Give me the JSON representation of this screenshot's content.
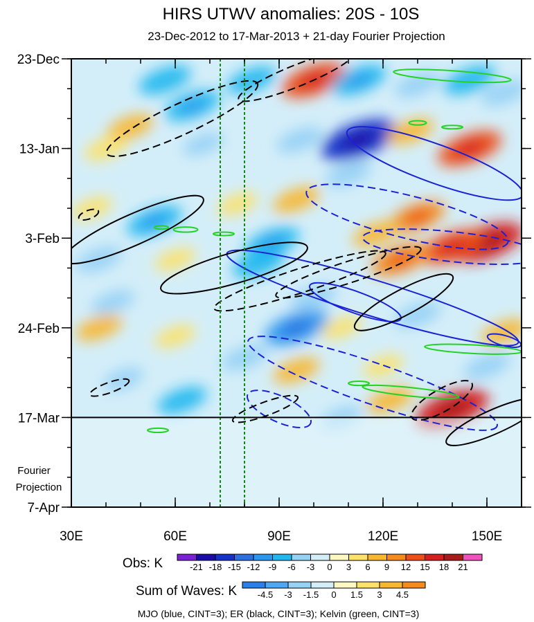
{
  "chart_data": {
    "type": "heatmap",
    "title": "HIRS UTWV anomalies: 20S - 10S",
    "subtitle": "23-Dec-2012 to 17-Mar-2013 + 21-day Fourier Projection",
    "x_axis": {
      "range": [
        30,
        160
      ],
      "unit": "degrees E",
      "ticks": [
        {
          "value": 30,
          "label": "30E"
        },
        {
          "value": 60,
          "label": "60E"
        },
        {
          "value": 90,
          "label": "90E"
        },
        {
          "value": 120,
          "label": "120E"
        },
        {
          "value": 150,
          "label": "150E"
        }
      ],
      "minor_step": 10
    },
    "y_axis": {
      "range_days": [
        0,
        105
      ],
      "direction": "time increases downward",
      "ticks": [
        {
          "day": 0,
          "label": "23-Dec"
        },
        {
          "day": 21,
          "label": "13-Jan"
        },
        {
          "day": 42,
          "label": "3-Feb"
        },
        {
          "day": 63,
          "label": "24-Feb"
        },
        {
          "day": 84,
          "label": "17-Mar"
        },
        {
          "day": 105,
          "label": "7-Apr"
        }
      ],
      "minor_step_days": 7
    },
    "projection_label": [
      "Fourier",
      "Projection"
    ],
    "projection_start_day": 84,
    "reference_lines_lon": [
      73,
      80
    ],
    "obs_colorbar": {
      "label": "Obs: K",
      "levels": [
        -21,
        -18,
        -15,
        -12,
        -9,
        -6,
        -3,
        0,
        3,
        6,
        9,
        12,
        15,
        18,
        21
      ],
      "colors": [
        "#7b22d6",
        "#1a0ca8",
        "#1632c8",
        "#2f6fe0",
        "#2b97ee",
        "#22b8ef",
        "#97d2f5",
        "#d4eef9",
        "#fff8c2",
        "#fce16b",
        "#f8b731",
        "#f48b1c",
        "#ee4e17",
        "#d42020",
        "#a81c1c",
        "#f053c0"
      ]
    },
    "waves_colorbar": {
      "label": "Sum of Waves: K",
      "levels": [
        -4.5,
        -3,
        -1.5,
        0,
        1.5,
        3,
        4.5
      ],
      "colors": [
        "#2b7fe8",
        "#4ea7f2",
        "#97d2f5",
        "#d4eef9",
        "#fff8c2",
        "#fce16b",
        "#f8b731",
        "#f48b1c"
      ]
    },
    "anomaly_blobs": [
      {
        "lon": 57,
        "day": 5,
        "value": -8
      },
      {
        "lon": 65,
        "day": 11,
        "value": -9
      },
      {
        "lon": 82,
        "day": 5,
        "value": -7
      },
      {
        "lon": 100,
        "day": 5,
        "value": 12
      },
      {
        "lon": 113,
        "day": 5,
        "value": -9
      },
      {
        "lon": 130,
        "day": 6,
        "value": -6
      },
      {
        "lon": 145,
        "day": 5,
        "value": -8
      },
      {
        "lon": 155,
        "day": 8,
        "value": -6
      },
      {
        "lon": 47,
        "day": 16,
        "value": 6
      },
      {
        "lon": 40,
        "day": 21,
        "value": 5
      },
      {
        "lon": 68,
        "day": 20,
        "value": -4
      },
      {
        "lon": 96,
        "day": 19,
        "value": -6
      },
      {
        "lon": 113,
        "day": 19,
        "value": -16
      },
      {
        "lon": 110,
        "day": 27,
        "value": -6
      },
      {
        "lon": 128,
        "day": 17,
        "value": 6
      },
      {
        "lon": 145,
        "day": 21,
        "value": 12
      },
      {
        "lon": 36,
        "day": 35,
        "value": 4
      },
      {
        "lon": 54,
        "day": 38,
        "value": -9
      },
      {
        "lon": 78,
        "day": 34,
        "value": 4
      },
      {
        "lon": 95,
        "day": 33,
        "value": 6
      },
      {
        "lon": 130,
        "day": 37,
        "value": 9
      },
      {
        "lon": 150,
        "day": 43,
        "value": 15
      },
      {
        "lon": 140,
        "day": 44,
        "value": 12
      },
      {
        "lon": 125,
        "day": 47,
        "value": 10
      },
      {
        "lon": 118,
        "day": 41,
        "value": 6
      },
      {
        "lon": 88,
        "day": 43,
        "value": -9
      },
      {
        "lon": 84,
        "day": 48,
        "value": -8
      },
      {
        "lon": 38,
        "day": 47,
        "value": -6
      },
      {
        "lon": 60,
        "day": 47,
        "value": 4
      },
      {
        "lon": 42,
        "day": 57,
        "value": -5
      },
      {
        "lon": 95,
        "day": 63,
        "value": -12
      },
      {
        "lon": 100,
        "day": 56,
        "value": -6
      },
      {
        "lon": 130,
        "day": 60,
        "value": -6
      },
      {
        "lon": 108,
        "day": 63,
        "value": 4
      },
      {
        "lon": 38,
        "day": 63,
        "value": 6
      },
      {
        "lon": 60,
        "day": 65,
        "value": 4
      },
      {
        "lon": 80,
        "day": 70,
        "value": -6
      },
      {
        "lon": 45,
        "day": 75,
        "value": -4
      },
      {
        "lon": 62,
        "day": 80,
        "value": -7
      },
      {
        "lon": 95,
        "day": 73,
        "value": 6
      },
      {
        "lon": 120,
        "day": 72,
        "value": 4
      },
      {
        "lon": 150,
        "day": 72,
        "value": -6
      },
      {
        "lon": 155,
        "day": 64,
        "value": 6
      },
      {
        "lon": 140,
        "day": 82,
        "value": 15
      },
      {
        "lon": 122,
        "day": 80,
        "value": 6
      },
      {
        "lon": 108,
        "day": 84,
        "value": -4
      },
      {
        "lon": 50,
        "day": 88,
        "value": -2
      },
      {
        "lon": 90,
        "day": 94,
        "value": -2
      },
      {
        "lon": 120,
        "day": 98,
        "value": -2
      },
      {
        "lon": 140,
        "day": 95,
        "value": -1.5
      }
    ],
    "wave_contours": [
      {
        "wave": "MJO",
        "sign": "positive",
        "lon": 135,
        "day": 24.5,
        "rx": 27,
        "ry": 4.5,
        "angle_deg": 20
      },
      {
        "wave": "MJO",
        "sign": "negative",
        "lon": 127,
        "day": 37,
        "rx": 30,
        "ry": 5,
        "angle_deg": 14
      },
      {
        "wave": "MJO",
        "sign": "negative",
        "lon": 140,
        "day": 44,
        "rx": 26,
        "ry": 3.5,
        "angle_deg": 6
      },
      {
        "wave": "MJO",
        "sign": "positive",
        "lon": 117,
        "day": 56,
        "rx": 44,
        "ry": 4.2,
        "angle_deg": 17
      },
      {
        "wave": "MJO",
        "sign": "positive",
        "lon": 112,
        "day": 57,
        "rx": 14,
        "ry": 2.5,
        "angle_deg": 20
      },
      {
        "wave": "MJO",
        "sign": "negative",
        "lon": 117,
        "day": 76,
        "rx": 38,
        "ry": 4.8,
        "angle_deg": 19
      },
      {
        "wave": "MJO",
        "sign": "negative",
        "lon": 90,
        "day": 82,
        "rx": 10,
        "ry": 3,
        "angle_deg": 25
      },
      {
        "wave": "MJO",
        "sign": "positive",
        "lon": 155,
        "day": 66,
        "rx": 5,
        "ry": 1.2,
        "angle_deg": 15
      },
      {
        "wave": "ER",
        "sign": "negative",
        "lon": 62,
        "day": 14,
        "rx": 24,
        "ry": 3.6,
        "angle_deg": -25
      },
      {
        "wave": "ER",
        "sign": "negative",
        "lon": 95,
        "day": 4,
        "rx": 18,
        "ry": 2.5,
        "angle_deg": -22
      },
      {
        "wave": "ER",
        "sign": "positive",
        "lon": 48,
        "day": 40,
        "rx": 22,
        "ry": 3.6,
        "angle_deg": -24
      },
      {
        "wave": "ER",
        "sign": "positive",
        "lon": 77,
        "day": 49,
        "rx": 22,
        "ry": 3.6,
        "angle_deg": -16
      },
      {
        "wave": "ER",
        "sign": "negative",
        "lon": 96,
        "day": 52,
        "rx": 26,
        "ry": 2.8,
        "angle_deg": -18
      },
      {
        "wave": "ER",
        "sign": "negative",
        "lon": 110,
        "day": 50,
        "rx": 22,
        "ry": 2.5,
        "angle_deg": -18
      },
      {
        "wave": "ER",
        "sign": "positive",
        "lon": 126,
        "day": 57,
        "rx": 16,
        "ry": 3,
        "angle_deg": -28
      },
      {
        "wave": "ER",
        "sign": "negative",
        "lon": 35,
        "day": 36.5,
        "rx": 3,
        "ry": 1,
        "angle_deg": -20
      },
      {
        "wave": "ER",
        "sign": "negative",
        "lon": 41,
        "day": 77,
        "rx": 6,
        "ry": 1.2,
        "angle_deg": -20
      },
      {
        "wave": "ER",
        "sign": "negative",
        "lon": 137,
        "day": 80,
        "rx": 10,
        "ry": 2.6,
        "angle_deg": -30
      },
      {
        "wave": "ER",
        "sign": "positive",
        "lon": 152,
        "day": 85,
        "rx": 15,
        "ry": 2.8,
        "angle_deg": -24
      },
      {
        "wave": "ER",
        "sign": "negative",
        "lon": 86,
        "day": 82,
        "rx": 10,
        "ry": 1.6,
        "angle_deg": -20
      },
      {
        "wave": "Kelvin",
        "sign": "positive",
        "lon": 140,
        "day": 4,
        "rx": 17,
        "ry": 1.2,
        "angle_deg": 4
      },
      {
        "wave": "Kelvin",
        "sign": "positive",
        "lon": 146,
        "day": 68,
        "rx": 14,
        "ry": 1,
        "angle_deg": 3
      },
      {
        "wave": "Kelvin",
        "sign": "positive",
        "lon": 128,
        "day": 78,
        "rx": 14,
        "ry": 1,
        "angle_deg": 6
      },
      {
        "wave": "Kelvin",
        "sign": "positive",
        "lon": 63,
        "day": 40,
        "rx": 3.5,
        "ry": 0.6,
        "angle_deg": 0
      },
      {
        "wave": "Kelvin",
        "sign": "positive",
        "lon": 56,
        "day": 39.5,
        "rx": 2,
        "ry": 0.4,
        "angle_deg": 0
      },
      {
        "wave": "Kelvin",
        "sign": "positive",
        "lon": 74,
        "day": 41,
        "rx": 3,
        "ry": 0.4,
        "angle_deg": 0
      },
      {
        "wave": "Kelvin",
        "sign": "positive",
        "lon": 130,
        "day": 15,
        "rx": 2.5,
        "ry": 0.5,
        "angle_deg": 0
      },
      {
        "wave": "Kelvin",
        "sign": "positive",
        "lon": 140,
        "day": 16,
        "rx": 3,
        "ry": 0.4,
        "angle_deg": 0
      },
      {
        "wave": "Kelvin",
        "sign": "positive",
        "lon": 113,
        "day": 76,
        "rx": 3,
        "ry": 0.5,
        "angle_deg": 0
      },
      {
        "wave": "Kelvin",
        "sign": "positive",
        "lon": 55,
        "day": 87,
        "rx": 3,
        "ry": 0.5,
        "angle_deg": 0
      }
    ],
    "legend_text": "MJO (blue, CINT=3); ER (black, CINT=3); Kelvin (green, CINT=3)",
    "wave_colors": {
      "MJO": "#1a22d6",
      "ER": "#000000",
      "Kelvin": "#22d322"
    }
  }
}
